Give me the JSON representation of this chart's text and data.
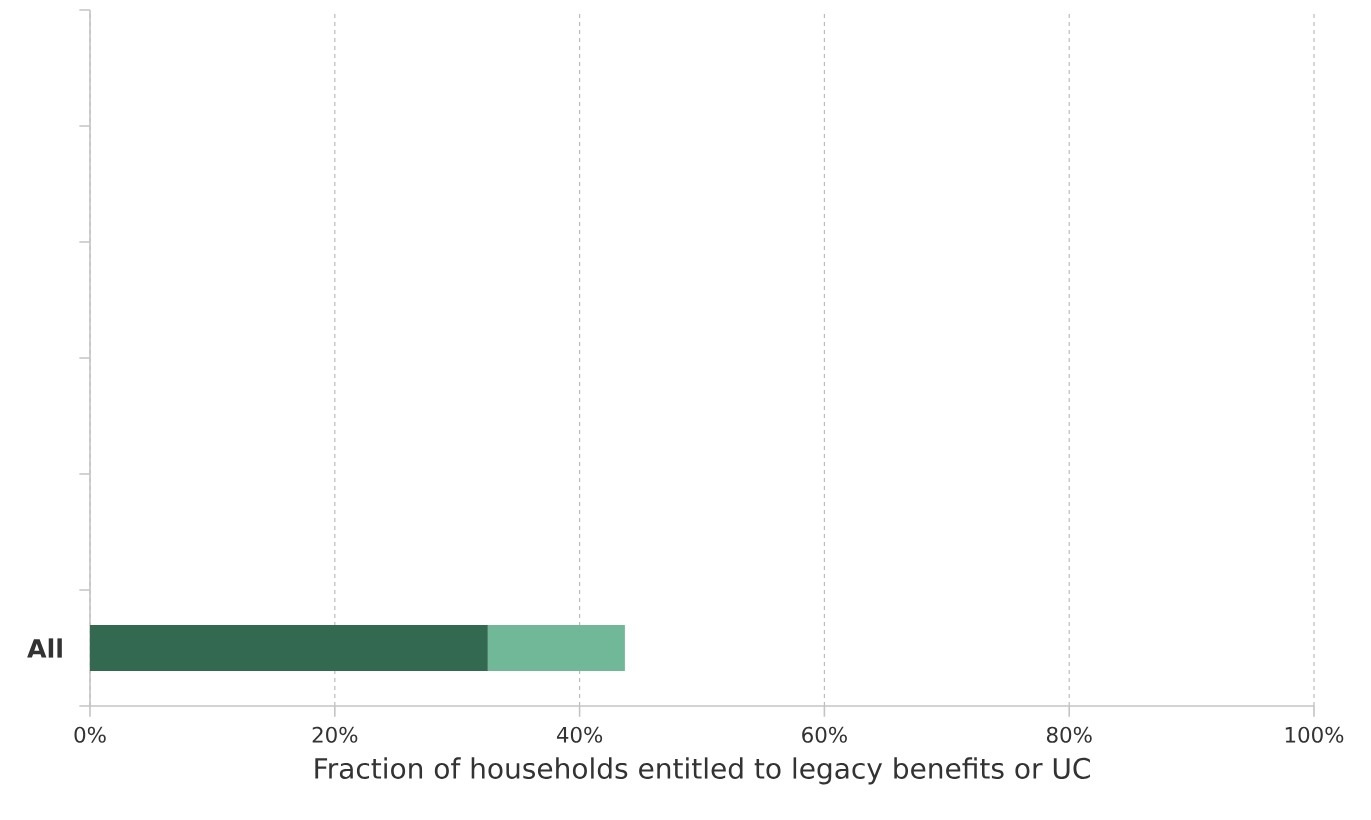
{
  "chart_data": {
    "type": "bar",
    "orientation": "horizontal",
    "stacked": true,
    "xlabel": "Fraction of households entitled to legacy benefits or UC",
    "categories": [
      null,
      null,
      null,
      null,
      null,
      "All"
    ],
    "series": [
      {
        "color": "#336950",
        "values": [
          null,
          null,
          null,
          null,
          null,
          32.5
        ]
      },
      {
        "color": "#70b898",
        "values": [
          null,
          null,
          null,
          null,
          null,
          11.2
        ]
      }
    ],
    "xlim": [
      0,
      100
    ],
    "xticks": [
      {
        "value": 0,
        "label": "0%"
      },
      {
        "value": 20,
        "label": "20%"
      },
      {
        "value": 40,
        "label": "40%"
      },
      {
        "value": 60,
        "label": "60%"
      },
      {
        "value": 80,
        "label": "80%"
      },
      {
        "value": 100,
        "label": "100%"
      }
    ],
    "grid": "x"
  }
}
